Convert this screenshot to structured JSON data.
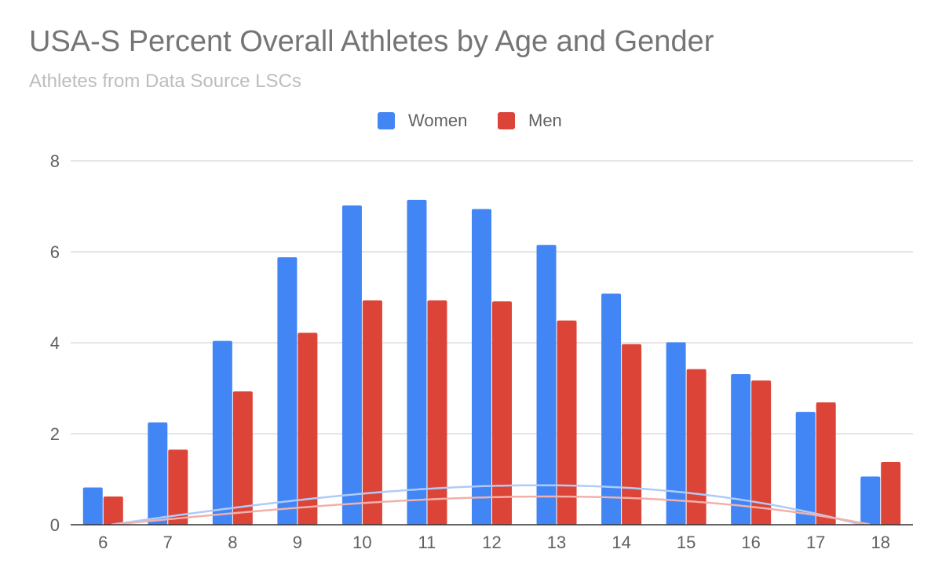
{
  "chart_data": {
    "type": "bar",
    "title": "USA-S Percent Overall Athletes by Age and Gender",
    "subtitle": "Athletes from Data Source LSCs",
    "xlabel": "",
    "ylabel": "",
    "ylim": [
      0,
      8
    ],
    "yticks": [
      "0",
      "2",
      "4",
      "6",
      "8"
    ],
    "grid": true,
    "legend_position": "top-center",
    "categories": [
      "6",
      "7",
      "8",
      "9",
      "10",
      "11",
      "12",
      "13",
      "14",
      "15",
      "16",
      "17",
      "18"
    ],
    "series": [
      {
        "name": "Women",
        "color": "#4285f4",
        "trend_color": "#aecbfa",
        "values": [
          0.82,
          2.25,
          4.04,
          5.88,
          7.02,
          7.14,
          6.94,
          6.15,
          5.08,
          4.01,
          3.31,
          2.48,
          1.06
        ],
        "trendline": {
          "type": "polynomial",
          "coefficients": [
            -0.1255,
            0.2058,
            7.9e-05,
            -0.00132
          ]
        }
      },
      {
        "name": "Men",
        "color": "#db4437",
        "trend_color": "#f2b0aa",
        "values": [
          0.62,
          1.65,
          2.93,
          4.22,
          4.93,
          4.93,
          4.91,
          4.49,
          3.97,
          3.42,
          3.17,
          2.69,
          1.38
        ],
        "trendline": {
          "type": "polynomial",
          "coefficients": [
            -0.0879,
            0.1385,
            0.00145,
            -0.000977
          ]
        }
      }
    ]
  }
}
